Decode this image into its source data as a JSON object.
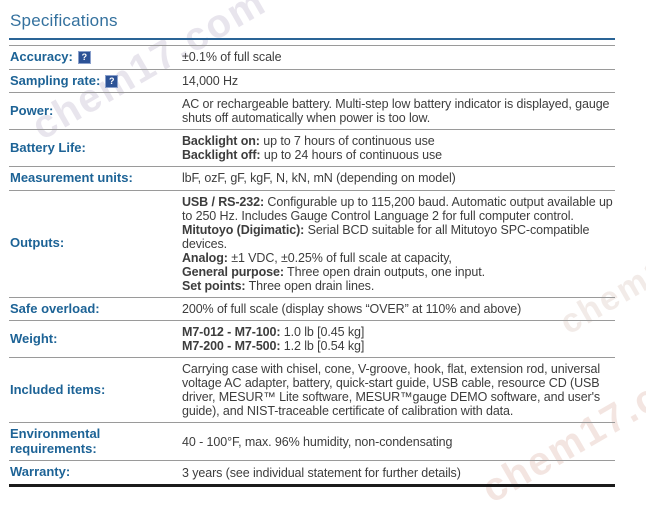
{
  "page": {
    "title": "Specifications"
  },
  "watermark": {
    "text": "chem17.com"
  },
  "colors": {
    "heading": "#34719e",
    "heading_rule": "#2a6496",
    "label": "#1d6396",
    "value_text": "#3d3d3d",
    "row_border": "#9a9a9a",
    "bottom_border": "#1b1b1b",
    "help_icon_bg": "#2c5296"
  },
  "help_icon": {
    "glyph": "?"
  },
  "table": {
    "rows": [
      {
        "label": "Accuracy:",
        "help": true,
        "paragraphs": [
          [
            {
              "text": "±0.1% of full scale"
            }
          ]
        ]
      },
      {
        "label": "Sampling rate:",
        "help": true,
        "paragraphs": [
          [
            {
              "text": "14,000 Hz"
            }
          ]
        ]
      },
      {
        "label": "Power:",
        "paragraphs": [
          [
            {
              "text": "AC or rechargeable battery. Multi-step low battery indicator is displayed, gauge shuts off automatically when power is too low."
            }
          ]
        ]
      },
      {
        "label": "Battery Life:",
        "paragraphs": [
          [
            {
              "text": "Backlight on:",
              "bold": true
            },
            {
              "text": " up to 7 hours of continuous use"
            }
          ],
          [
            {
              "text": "Backlight off:",
              "bold": true
            },
            {
              "text": " up to 24 hours of continuous use"
            }
          ]
        ]
      },
      {
        "label": "Measurement units:",
        "paragraphs": [
          [
            {
              "text": "lbF, ozF, gF, kgF, N, kN, mN (depending on model)"
            }
          ]
        ]
      },
      {
        "label": "Outputs:",
        "paragraphs": [
          [
            {
              "text": "USB / RS-232:",
              "bold": true
            },
            {
              "text": " Configurable up to 115,200 baud. Automatic output available up to 250 Hz. Includes Gauge Control Language 2 for full computer control."
            }
          ],
          [
            {
              "text": "Mitutoyo (Digimatic):",
              "bold": true
            },
            {
              "text": " Serial BCD suitable for all Mitutoyo SPC-compatible devices."
            }
          ],
          [
            {
              "text": "Analog:",
              "bold": true
            },
            {
              "text": " ±1 VDC, ±0.25% of full scale at capacity,"
            }
          ],
          [
            {
              "text": "General purpose:",
              "bold": true
            },
            {
              "text": " Three open drain outputs, one input."
            }
          ],
          [
            {
              "text": "Set points:",
              "bold": true
            },
            {
              "text": " Three open drain lines."
            }
          ]
        ]
      },
      {
        "label": "Safe overload:",
        "paragraphs": [
          [
            {
              "text": "200% of full scale (display shows “OVER” at 110% and above)"
            }
          ]
        ]
      },
      {
        "label": "Weight:",
        "paragraphs": [
          [
            {
              "text": "M7-012 - M7-100:",
              "bold": true
            },
            {
              "text": " 1.0 lb [0.45 kg]"
            }
          ],
          [
            {
              "text": "M7-200 - M7-500:",
              "bold": true
            },
            {
              "text": " 1.2 lb [0.54 kg]"
            }
          ]
        ]
      },
      {
        "label": "Included items:",
        "paragraphs": [
          [
            {
              "text": "Carrying case with chisel, cone, V-groove, hook, flat, extension rod, universal voltage AC adapter, battery, quick-start guide, USB cable, resource CD (USB driver, MESUR™ Lite software, MESUR™gauge DEMO software, and user's guide), and NIST-traceable certificate of calibration with data."
            }
          ]
        ]
      },
      {
        "label": "Environmental requirements:",
        "paragraphs": [
          [
            {
              "text": "40 - 100°F, max. 96% humidity, non-condensating"
            }
          ]
        ]
      },
      {
        "label": "Warranty:",
        "paragraphs": [
          [
            {
              "text": "3 years (see individual statement for further details)"
            }
          ]
        ]
      }
    ]
  }
}
